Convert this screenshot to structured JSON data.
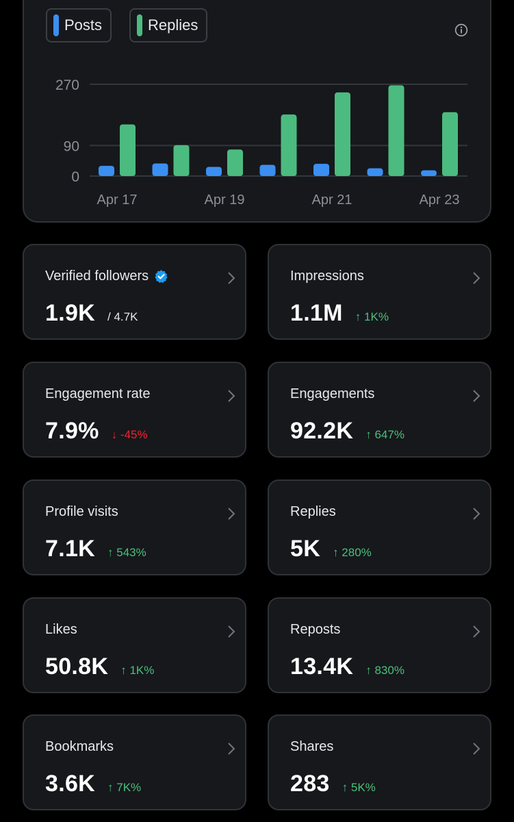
{
  "chart": {
    "legend": [
      {
        "label": "Posts",
        "color": "#3b8ff0"
      },
      {
        "label": "Replies",
        "color": "#4cbb7f"
      }
    ],
    "info_icon": "info-icon"
  },
  "chart_data": {
    "type": "bar",
    "title": "",
    "categories": [
      "Apr 17",
      "Apr 18",
      "Apr 19",
      "Apr 20",
      "Apr 21",
      "Apr 22",
      "Apr 23"
    ],
    "tick_labels": [
      "Apr 17",
      "Apr 19",
      "Apr 21",
      "Apr 23"
    ],
    "y_ticks": [
      0,
      90,
      270
    ],
    "ylim": [
      0,
      270
    ],
    "xlabel": "",
    "ylabel": "",
    "grid": true,
    "legend_position": "top-left",
    "series": [
      {
        "name": "Posts",
        "color": "#3b8ff0",
        "values": [
          30,
          37,
          27,
          33,
          36,
          23,
          17
        ]
      },
      {
        "name": "Replies",
        "color": "#4cbb7f",
        "values": [
          152,
          91,
          78,
          181,
          246,
          267,
          188
        ]
      }
    ]
  },
  "metrics": [
    {
      "label": "Verified followers",
      "value": "1.9K",
      "sub": "/ 4.7K",
      "trend": "neutral",
      "verified": true
    },
    {
      "label": "Impressions",
      "value": "1.1M",
      "sub": "↑ 1K%",
      "trend": "up"
    },
    {
      "label": "Engagement rate",
      "value": "7.9%",
      "sub": "↓ -45%",
      "trend": "down"
    },
    {
      "label": "Engagements",
      "value": "92.2K",
      "sub": "↑ 647%",
      "trend": "up"
    },
    {
      "label": "Profile visits",
      "value": "7.1K",
      "sub": "↑ 543%",
      "trend": "up"
    },
    {
      "label": "Replies",
      "value": "5K",
      "sub": "↑ 280%",
      "trend": "up"
    },
    {
      "label": "Likes",
      "value": "50.8K",
      "sub": "↑ 1K%",
      "trend": "up"
    },
    {
      "label": "Reposts",
      "value": "13.4K",
      "sub": "↑ 830%",
      "trend": "up"
    },
    {
      "label": "Bookmarks",
      "value": "3.6K",
      "sub": "↑ 7K%",
      "trend": "up"
    },
    {
      "label": "Shares",
      "value": "283",
      "sub": "↑ 5K%",
      "trend": "up"
    }
  ],
  "colors": {
    "background": "#000000",
    "card": "#16181c",
    "border": "#2f3336",
    "up": "#4cc07a",
    "down": "#f4212e",
    "verified": "#1d9bf0"
  }
}
